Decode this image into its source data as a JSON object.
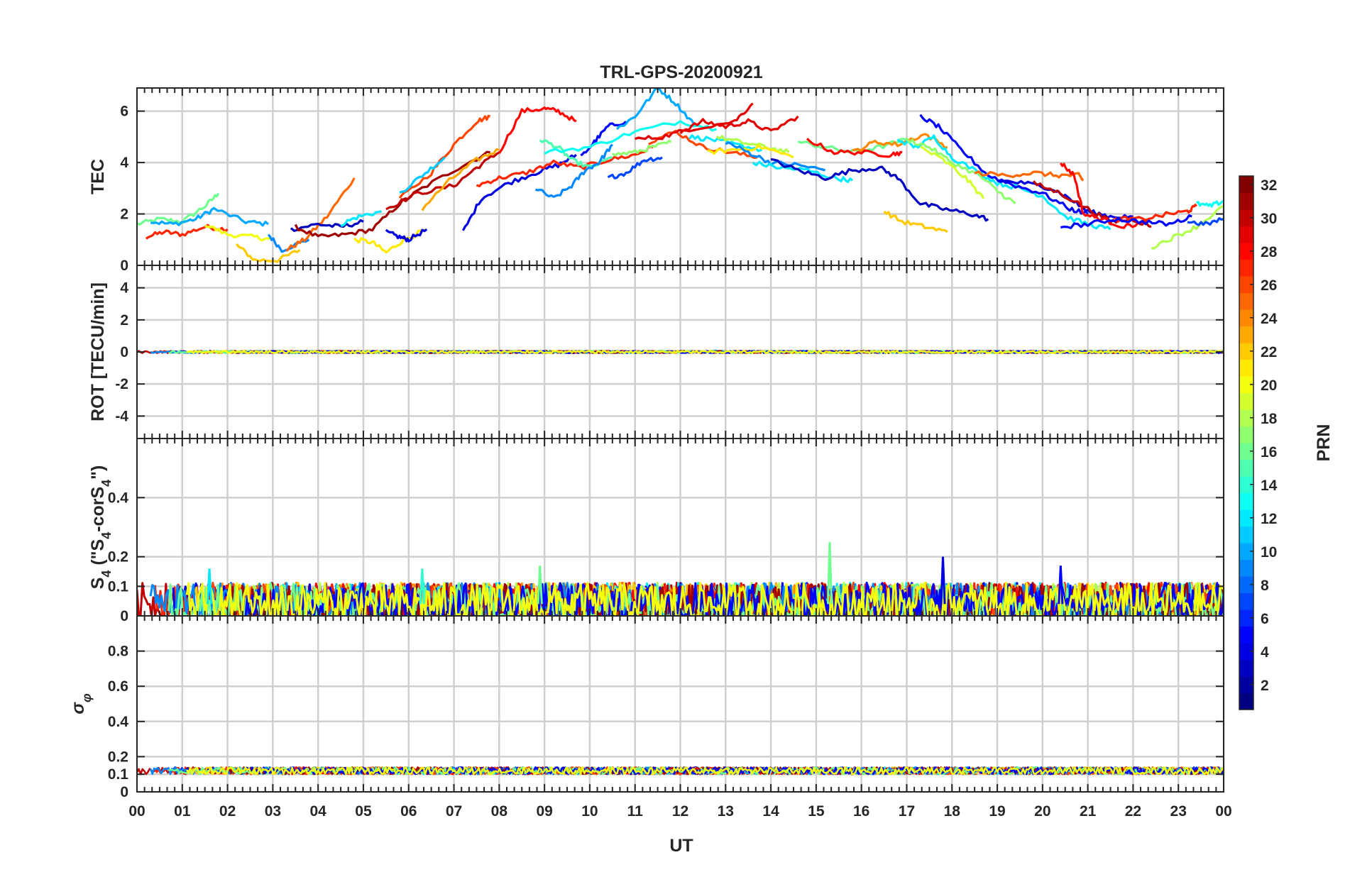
{
  "chart_data": {
    "type": "line",
    "title": "TRL-GPS-20200921",
    "xlabel": "UT",
    "x_unit": "hours",
    "xlim": [
      0,
      24
    ],
    "x_tick_values": [
      0,
      1,
      2,
      3,
      4,
      5,
      6,
      7,
      8,
      9,
      10,
      11,
      12,
      13,
      14,
      15,
      16,
      17,
      18,
      19,
      20,
      21,
      22,
      23,
      24
    ],
    "x_tick_labels": [
      "00",
      "01",
      "02",
      "03",
      "04",
      "05",
      "06",
      "07",
      "08",
      "09",
      "10",
      "11",
      "12",
      "13",
      "14",
      "15",
      "16",
      "17",
      "18",
      "19",
      "20",
      "21",
      "22",
      "23",
      "00"
    ],
    "grid": true,
    "colorbar": {
      "label": "PRN",
      "range": [
        1,
        32
      ],
      "tick_values": [
        2,
        4,
        6,
        8,
        10,
        12,
        14,
        16,
        18,
        20,
        22,
        24,
        26,
        28,
        30,
        32
      ],
      "tick_labels": [
        "2",
        "4",
        "6",
        "8",
        "10",
        "12",
        "14",
        "16",
        "18",
        "20",
        "22",
        "24",
        "26",
        "28",
        "30",
        "32"
      ],
      "colormap": "jet"
    },
    "panels": [
      {
        "id": "tec",
        "ylabel": "TEC",
        "ylim": [
          0,
          6.9
        ],
        "y_ticks": [
          0,
          2,
          4,
          6
        ],
        "y_tick_labels": [
          "0",
          "2",
          "4",
          "6"
        ],
        "series": [
          {
            "prn": 16,
            "x": [
              0,
              0.5,
              1,
              1.5,
              1.8
            ],
            "y": [
              1.6,
              1.8,
              1.7,
              2.3,
              2.8
            ]
          },
          {
            "prn": 27,
            "x": [
              0.2,
              0.6,
              1.0,
              1.5,
              2.0
            ],
            "y": [
              1.1,
              1.3,
              1.2,
              1.5,
              1.4
            ]
          },
          {
            "prn": 10,
            "x": [
              0.3,
              0.8,
              1.3,
              1.7,
              2.4,
              2.9
            ],
            "y": [
              1.7,
              1.6,
              1.8,
              2.2,
              1.7,
              1.6
            ]
          },
          {
            "prn": 20,
            "x": [
              1.5,
              2.0,
              2.6,
              3.0
            ],
            "y": [
              1.6,
              1.2,
              1.1,
              1.0
            ]
          },
          {
            "prn": 22,
            "x": [
              2.2,
              2.6,
              3.1,
              3.6
            ],
            "y": [
              0.8,
              0.2,
              0.2,
              0.6
            ]
          },
          {
            "prn": 9,
            "x": [
              2.9,
              3.2,
              3.8
            ],
            "y": [
              1.2,
              0.6,
              1.0
            ]
          },
          {
            "prn": 25,
            "x": [
              3.3,
              3.7,
              4.2,
              4.8
            ],
            "y": [
              0.6,
              1.0,
              1.9,
              3.4
            ]
          },
          {
            "prn": 3,
            "x": [
              3.4,
              4.0,
              4.5,
              5.0
            ],
            "y": [
              1.4,
              1.6,
              1.5,
              1.7
            ]
          },
          {
            "prn": 31,
            "x": [
              3.5,
              4.0,
              4.6,
              5.2,
              5.8,
              6.3,
              7.2,
              7.8
            ],
            "y": [
              1.5,
              1.1,
              1.2,
              1.4,
              2.4,
              3.0,
              3.9,
              4.4
            ]
          },
          {
            "prn": 12,
            "x": [
              4.5,
              4.9,
              5.4
            ],
            "y": [
              1.6,
              1.9,
              2.1
            ]
          },
          {
            "prn": 21,
            "x": [
              4.8,
              5.2,
              5.5,
              5.9,
              6.4
            ],
            "y": [
              1.0,
              0.9,
              0.5,
              1.0,
              1.4
            ]
          },
          {
            "prn": 4,
            "x": [
              5.5,
              5.8,
              6.0,
              6.4
            ],
            "y": [
              1.3,
              1.1,
              1.0,
              1.4
            ]
          },
          {
            "prn": 26,
            "x": [
              5.8,
              6.5,
              7.0,
              7.5,
              7.8
            ],
            "y": [
              2.6,
              3.6,
              4.7,
              5.6,
              5.8
            ]
          },
          {
            "prn": 11,
            "x": [
              5.8,
              6.3,
              6.8
            ],
            "y": [
              2.8,
              3.5,
              4.2
            ]
          },
          {
            "prn": 30,
            "x": [
              5.5,
              6.2,
              7.0,
              7.5,
              8.0
            ],
            "y": [
              2.2,
              2.8,
              3.1,
              3.8,
              4.4
            ]
          },
          {
            "prn": 23,
            "x": [
              6.3,
              6.9,
              7.5,
              8.0
            ],
            "y": [
              2.2,
              3.3,
              4.1,
              4.5
            ]
          },
          {
            "prn": 28,
            "x": [
              8.0,
              8.5,
              9.0,
              9.3,
              9.7
            ],
            "y": [
              4.4,
              6.0,
              6.1,
              6.0,
              5.6
            ]
          },
          {
            "prn": 4,
            "x": [
              7.2,
              7.6,
              8.2,
              8.8,
              9.3,
              9.7
            ],
            "y": [
              1.3,
              2.6,
              3.2,
              3.6,
              3.9,
              4.3
            ]
          },
          {
            "prn": 27,
            "x": [
              7.5,
              8.0,
              8.6,
              9.2,
              9.8,
              10.4,
              11.0,
              11.4
            ],
            "y": [
              3.1,
              3.4,
              3.6,
              4.0,
              3.8,
              4.1,
              4.3,
              4.6
            ]
          },
          {
            "prn": 15,
            "x": [
              8.9,
              9.3,
              9.6,
              10.0,
              10.5
            ],
            "y": [
              4.9,
              4.6,
              4.1,
              3.8,
              4.2
            ]
          },
          {
            "prn": 9,
            "x": [
              8.8,
              9.2,
              9.6,
              9.9,
              10.2,
              10.5
            ],
            "y": [
              3.0,
              2.6,
              3.1,
              3.7,
              4.0,
              4.7
            ]
          },
          {
            "prn": 5,
            "x": [
              9.8,
              10.1,
              10.4,
              10.8
            ],
            "y": [
              4.2,
              4.8,
              5.4,
              5.6
            ]
          },
          {
            "prn": 17,
            "x": [
              10.5,
              11.0,
              11.4,
              11.8
            ],
            "y": [
              4.3,
              4.4,
              4.6,
              4.8
            ]
          },
          {
            "prn": 7,
            "x": [
              10.4,
              10.8,
              11.2,
              11.6
            ],
            "y": [
              3.4,
              3.6,
              4.1,
              4.2
            ]
          },
          {
            "prn": 10,
            "x": [
              10.6,
              11.0,
              11.5,
              11.9,
              12.3
            ],
            "y": [
              5.3,
              5.8,
              6.9,
              6.3,
              5.5
            ]
          },
          {
            "prn": 13,
            "x": [
              9.0,
              10.0,
              11.0,
              12.0,
              12.8
            ],
            "y": [
              4.4,
              4.6,
              5.2,
              5.6,
              5.3
            ]
          },
          {
            "prn": 26,
            "x": [
              11.3,
              11.9,
              12.5,
              13.1,
              13.7
            ],
            "y": [
              4.8,
              5.2,
              4.6,
              4.4,
              4.2
            ]
          },
          {
            "prn": 29,
            "x": [
              12.0,
              12.5,
              13.0,
              13.5,
              14.0,
              14.6
            ],
            "y": [
              5.2,
              5.6,
              5.4,
              5.6,
              5.2,
              5.8
            ]
          },
          {
            "prn": 29,
            "x": [
              11.0,
              11.6,
              12.2,
              13.2,
              13.6
            ],
            "y": [
              4.9,
              5.0,
              5.3,
              5.6,
              6.3
            ]
          },
          {
            "prn": 12,
            "x": [
              12.2,
              12.7,
              13.2,
              13.8
            ],
            "y": [
              5.0,
              4.9,
              4.7,
              4.5
            ]
          },
          {
            "prn": 18,
            "x": [
              12.8,
              13.3,
              13.9,
              14.4
            ],
            "y": [
              5.0,
              4.8,
              4.6,
              4.4
            ]
          },
          {
            "prn": 21,
            "x": [
              12.6,
              13.2,
              13.8,
              14.5
            ],
            "y": [
              4.4,
              4.5,
              4.6,
              4.2
            ]
          },
          {
            "prn": 9,
            "x": [
              13.0,
              13.5,
              14.0,
              14.6,
              15.2
            ],
            "y": [
              4.8,
              4.4,
              4.0,
              3.9,
              3.7
            ]
          },
          {
            "prn": 12,
            "x": [
              13.6,
              14.2,
              14.8,
              15.4,
              15.8
            ],
            "y": [
              4.0,
              3.8,
              3.7,
              3.4,
              3.3
            ]
          },
          {
            "prn": 3,
            "x": [
              14.0,
              14.6,
              15.2,
              15.8,
              16.4,
              16.8,
              17.3,
              17.8,
              18.4,
              18.8
            ],
            "y": [
              4.1,
              3.7,
              3.4,
              3.7,
              3.8,
              3.4,
              2.4,
              2.2,
              2.0,
              1.8
            ]
          },
          {
            "prn": 16,
            "x": [
              14.6,
              15.2,
              15.8,
              16.4,
              17.0
            ],
            "y": [
              4.8,
              4.6,
              4.4,
              4.6,
              4.9
            ]
          },
          {
            "prn": 28,
            "x": [
              14.8,
              15.4,
              16.0,
              16.6,
              16.9
            ],
            "y": [
              4.9,
              4.4,
              4.4,
              4.3,
              4.4
            ]
          },
          {
            "prn": 24,
            "x": [
              15.8,
              16.3,
              16.8,
              17.4,
              17.9
            ],
            "y": [
              4.4,
              4.8,
              4.7,
              5.1,
              4.6
            ]
          },
          {
            "prn": 22,
            "x": [
              16.5,
              16.9,
              17.4,
              17.9
            ],
            "y": [
              2.1,
              1.7,
              1.5,
              1.3
            ]
          },
          {
            "prn": 12,
            "x": [
              16.8,
              17.2,
              17.6,
              18.0,
              18.6,
              19.0,
              19.5,
              20.0,
              20.5,
              21.0,
              21.5
            ],
            "y": [
              4.9,
              4.6,
              5.0,
              4.2,
              3.6,
              3.2,
              3.0,
              2.7,
              1.9,
              1.6,
              1.4
            ]
          },
          {
            "prn": 5,
            "x": [
              17.3,
              17.7,
              18.2,
              18.8,
              19.4,
              20.0,
              20.6,
              21.0
            ],
            "y": [
              5.8,
              5.4,
              4.5,
              3.5,
              3.1,
              2.8,
              2.2,
              2.0
            ]
          },
          {
            "prn": 17,
            "x": [
              17.0,
              17.5,
              18.0,
              18.6,
              19.0,
              19.4
            ],
            "y": [
              4.9,
              4.6,
              4.0,
              3.5,
              2.9,
              2.4
            ]
          },
          {
            "prn": 19,
            "x": [
              17.3,
              17.8,
              18.3,
              18.7
            ],
            "y": [
              4.6,
              4.1,
              3.4,
              2.6
            ]
          },
          {
            "prn": 25,
            "x": [
              18.5,
              19.2,
              19.8,
              20.3,
              20.8,
              20.9
            ],
            "y": [
              3.6,
              3.5,
              3.6,
              3.5,
              3.5,
              3.3
            ]
          },
          {
            "prn": 4,
            "x": [
              19.0,
              19.6,
              20.2,
              20.6,
              21.0,
              21.5,
              22.0
            ],
            "y": [
              3.3,
              3.2,
              3.0,
              2.6,
              2.1,
              1.9,
              1.9
            ]
          },
          {
            "prn": 30,
            "x": [
              19.8,
              20.4,
              21.0,
              21.5,
              22.0,
              22.4
            ],
            "y": [
              3.2,
              2.8,
              2.2,
              1.7,
              1.8,
              1.5
            ]
          },
          {
            "prn": 28,
            "x": [
              20.4,
              20.7,
              20.9,
              21.3,
              21.8,
              22.3
            ],
            "y": [
              4.0,
              3.5,
              2.0,
              1.8,
              1.5,
              1.7
            ]
          },
          {
            "prn": 27,
            "x": [
              21.6,
              22.2,
              22.8,
              23.2,
              23.4
            ],
            "y": [
              1.8,
              1.8,
              2.0,
              2.1,
              2.3
            ]
          },
          {
            "prn": 5,
            "x": [
              20.4,
              21.0,
              21.6,
              22.2,
              22.8,
              23.3
            ],
            "y": [
              1.5,
              1.6,
              1.8,
              1.7,
              1.6,
              1.9
            ]
          },
          {
            "prn": 18,
            "x": [
              22.4,
              22.9,
              23.4,
              24.0
            ],
            "y": [
              0.7,
              1.1,
              1.5,
              2.3
            ]
          },
          {
            "prn": 13,
            "x": [
              23.4,
              23.7,
              24.0
            ],
            "y": [
              2.4,
              2.3,
              2.5
            ]
          },
          {
            "prn": 7,
            "x": [
              23.2,
              23.6,
              24.0
            ],
            "y": [
              1.7,
              1.6,
              1.8
            ]
          }
        ]
      },
      {
        "id": "rot",
        "ylabel": "ROT [TECU/min]",
        "ylim": [
          -5.4,
          5.4
        ],
        "y_ticks": [
          -4,
          -2,
          0,
          2,
          4
        ],
        "y_tick_labels": [
          "-4",
          "-2",
          "0",
          "2",
          "4"
        ],
        "baseline": 0,
        "band": 0.15
      },
      {
        "id": "s4",
        "ylabel": "S4 (\"S4-corS4\")",
        "ylim": [
          0,
          0.6
        ],
        "y_ticks": [
          0,
          0.1,
          0.2,
          0.4
        ],
        "y_tick_labels": [
          "0",
          "0.1",
          "0.2",
          "0.4"
        ],
        "baseline": 0.04,
        "band": 0.09,
        "spikes": [
          {
            "x": 15.3,
            "y": 0.25,
            "prn": 16
          },
          {
            "x": 17.8,
            "y": 0.2,
            "prn": 4
          },
          {
            "x": 8.9,
            "y": 0.17,
            "prn": 16
          },
          {
            "x": 1.6,
            "y": 0.16,
            "prn": 12
          },
          {
            "x": 20.4,
            "y": 0.17,
            "prn": 5
          },
          {
            "x": 6.3,
            "y": 0.16,
            "prn": 14
          }
        ]
      },
      {
        "id": "sigma",
        "ylabel": "σφ",
        "ylim": [
          0,
          1.0
        ],
        "y_ticks": [
          0,
          0.1,
          0.2,
          0.4,
          0.6,
          0.8
        ],
        "y_tick_labels": [
          "0",
          "0.1",
          "0.2",
          "0.4",
          "0.6",
          "0.8"
        ],
        "baseline": 0.12,
        "band": 0.04
      }
    ]
  }
}
